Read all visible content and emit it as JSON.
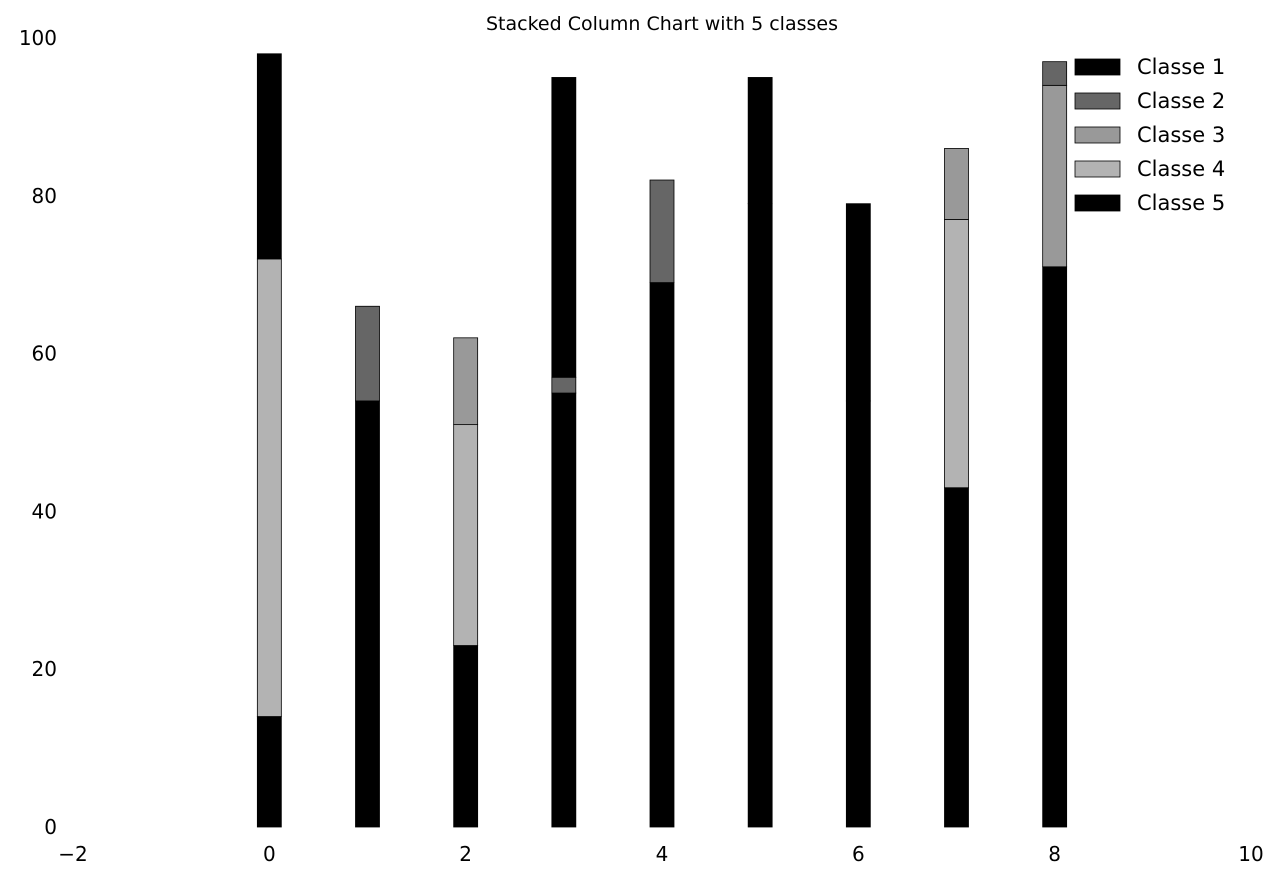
{
  "chart_data": {
    "type": "bar",
    "stacked": true,
    "title": "Stacked Column Chart with 5 classes",
    "xlabel": "",
    "ylabel": "",
    "x": [
      0,
      1,
      2,
      3,
      4,
      5,
      6,
      7,
      8
    ],
    "xlim": [
      -2,
      10
    ],
    "ylim": [
      0,
      100
    ],
    "xticks": [
      -2,
      0,
      2,
      4,
      6,
      8,
      10
    ],
    "xtick_labels": [
      "−2",
      "0",
      "2",
      "4",
      "6",
      "8",
      "10"
    ],
    "yticks": [
      0,
      20,
      40,
      60,
      80,
      100
    ],
    "ytick_labels": [
      "0",
      "20",
      "40",
      "60",
      "80",
      "100"
    ],
    "grid": false,
    "legend_position": "top-right",
    "series": [
      {
        "name": "Classe 5",
        "color": "#000000",
        "values": [
          14,
          54,
          23,
          55,
          69,
          79,
          54,
          43,
          71
        ]
      },
      {
        "name": "Classe 4",
        "color": "#b3b3b3",
        "values": [
          58,
          0,
          28,
          0,
          0,
          0,
          0,
          34,
          0
        ]
      },
      {
        "name": "Classe 3",
        "color": "#999999",
        "values": [
          0,
          0,
          11,
          0,
          0,
          0,
          0,
          9,
          23
        ]
      },
      {
        "name": "Classe 2",
        "color": "#666666",
        "values": [
          0,
          12,
          0,
          2,
          13,
          0,
          0,
          0,
          3
        ]
      },
      {
        "name": "Classe 1",
        "color": "#000000",
        "values": [
          26,
          0,
          0,
          38,
          0,
          16,
          25,
          0,
          0
        ]
      }
    ],
    "legend_order": [
      "Classe 1",
      "Classe 2",
      "Classe 3",
      "Classe 4",
      "Classe 5"
    ]
  }
}
